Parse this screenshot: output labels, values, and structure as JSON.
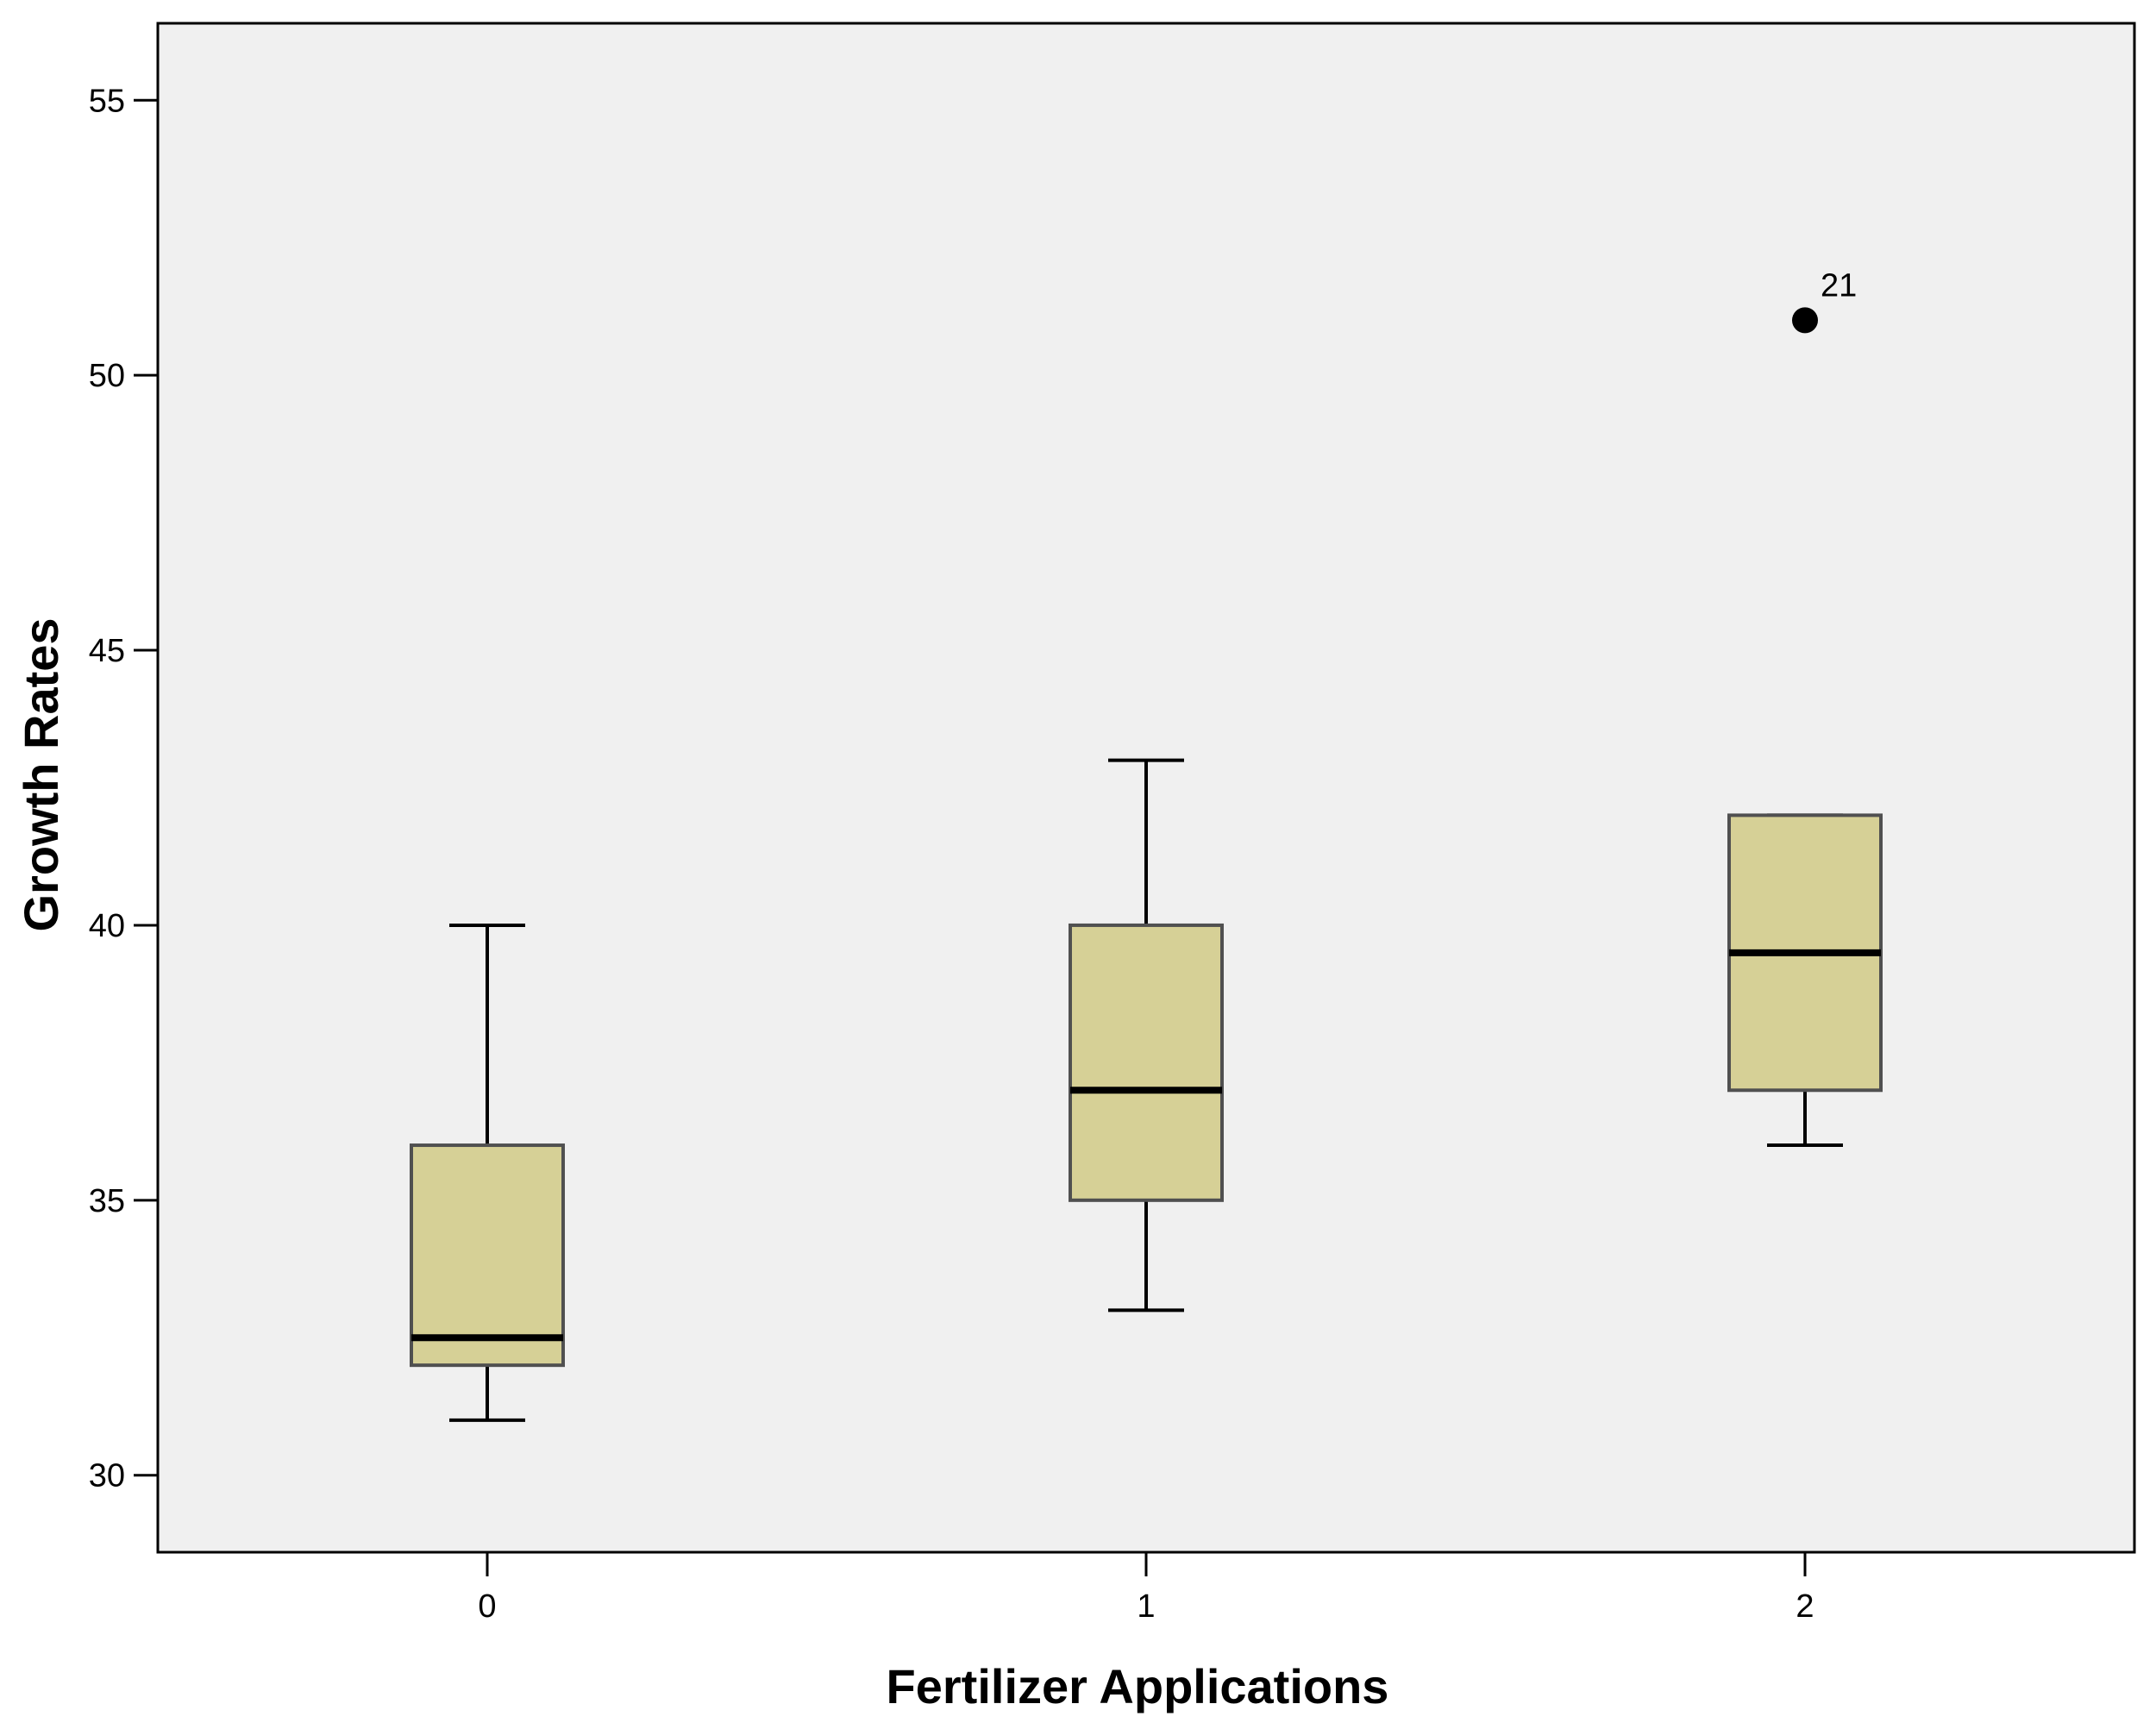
{
  "chart_data": {
    "type": "boxplot",
    "title": "",
    "xlabel": "Fertilizer Applications",
    "ylabel": "Growth Rates",
    "categories": [
      "0",
      "1",
      "2"
    ],
    "ylim": [
      28.6,
      56.4
    ],
    "yticks": [
      30,
      35,
      40,
      45,
      50,
      55
    ],
    "grid": false,
    "boxes": [
      {
        "category": "0",
        "whisker_low": 31.0,
        "q1": 32.0,
        "median": 32.5,
        "q3": 36.0,
        "whisker_high": 40.0
      },
      {
        "category": "1",
        "whisker_low": 33.0,
        "q1": 35.0,
        "median": 37.0,
        "q3": 40.0,
        "whisker_high": 43.0
      },
      {
        "category": "2",
        "whisker_low": 36.0,
        "q1": 37.0,
        "median": 39.5,
        "q3": 42.0,
        "whisker_high": 42.0
      }
    ],
    "outliers": [
      {
        "category": "2",
        "value": 51.0,
        "label": "21"
      }
    ],
    "colors": {
      "plot_background": "#f0f0f0",
      "box_fill": "#d6d096",
      "box_stroke": "#505050",
      "median": "#000000",
      "whisker": "#000000",
      "outlier": "#000000",
      "frame": "#000000"
    }
  }
}
